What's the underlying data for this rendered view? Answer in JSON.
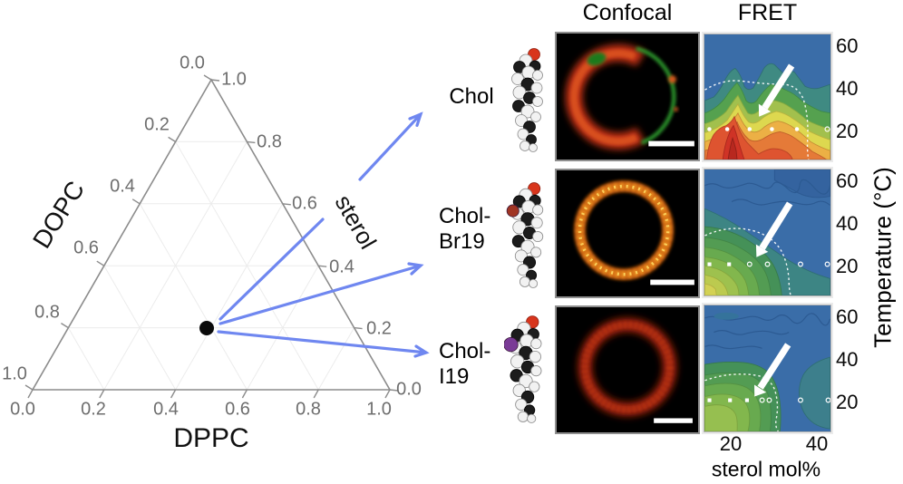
{
  "figure": {
    "columns": {
      "confocal_header": "Confocal",
      "fret_header": "FRET"
    },
    "rows": [
      {
        "sterol_name": "Chol",
        "label_lines": [
          "Chol",
          ""
        ],
        "substituent": "none",
        "substituent_color": ""
      },
      {
        "sterol_name": "Chol-Br19",
        "label_lines": [
          "Chol-",
          "Br19"
        ],
        "substituent": "bromine",
        "substituent_color": "#a03524"
      },
      {
        "sterol_name": "Chol-I19",
        "label_lines": [
          "Chol-",
          "I19"
        ],
        "substituent": "iodine",
        "substituent_color": "#7a3b96"
      }
    ]
  },
  "ternary": {
    "axes": {
      "left": "DOPC",
      "bottom": "DPPC",
      "right": "sterol"
    },
    "left_ticks": [
      "0.0",
      "0.2",
      "0.4",
      "0.6",
      "0.8",
      "1.0"
    ],
    "right_ticks": [
      "1.0",
      "0.8",
      "0.6",
      "0.4",
      "0.2",
      "0.0"
    ],
    "bottom_ticks": [
      "0.0",
      "0.2",
      "0.4",
      "0.6",
      "0.8",
      "1.0"
    ],
    "composition_point": {
      "DPPC": 0.47,
      "DOPC": 0.33,
      "sterol": 0.2
    }
  },
  "fret_axes": {
    "y_label": "Temperature (°C)",
    "y_ticks": [
      "60",
      "40",
      "20"
    ],
    "x_label": "sterol mol%",
    "x_ticks": [
      "20",
      "40"
    ]
  },
  "colors": {
    "arrow_blue": "#6f87f0",
    "ternary_axis_gray": "#8c8c8c",
    "fret_scale_low_to_high": [
      "#3a6da8",
      "#3d8584",
      "#459158",
      "#539c53",
      "#68aa4f",
      "#82b74d",
      "#a2c04d",
      "#ddd84f",
      "#ecb045",
      "#e57a38",
      "#de5430",
      "#cf3326"
    ],
    "confocal_red": "#c83214",
    "confocal_green": "#2f9e2f",
    "confocal_orange_ring": "#e08018"
  },
  "chart_data": [
    {
      "type": "scatter",
      "subtype": "ternary-phase-diagram",
      "axes": {
        "left": "DOPC",
        "bottom": "DPPC",
        "right": "sterol"
      },
      "tick_range": [
        0.0,
        1.0
      ],
      "tick_step": 0.2,
      "grid": true,
      "points": [
        {
          "DPPC": 0.47,
          "DOPC": 0.33,
          "sterol": 0.2
        }
      ],
      "annotation": "single black composition point; three blue arrows fan out to the Chol, Chol-Br19 and Chol-I19 rows"
    },
    {
      "type": "heatmap",
      "title": "Chol FRET map",
      "xlabel": "sterol mol%",
      "ylabel": "Temperature (°C)",
      "x_ticks": [
        20,
        40
      ],
      "y_ticks": [
        60,
        40,
        20
      ],
      "description": "strong FRET dome (yellow-orange-red) below ~35 °C with red core near 10-15 mol% and <20 °C; blue (low FRET) above 40 °C; white dashed miscibility boundary; white sample points along 20 °C; white arrow points near 22 mol%, 25 °C"
    },
    {
      "type": "heatmap",
      "title": "Chol-Br19 FRET map",
      "xlabel": "sterol mol%",
      "ylabel": "Temperature (°C)",
      "x_ticks": [
        20,
        40
      ],
      "y_ticks": [
        60,
        40,
        20
      ],
      "description": "moderate FRET green-yellow blob confined to lower-left corner (<~30 mol%, <~30 °C); remainder blue/teal; dashed boundary arc; sample points along 20 °C; arrow points near boundary at ~22 mol%"
    },
    {
      "type": "heatmap",
      "title": "Chol-I19 FRET map",
      "xlabel": "sterol mol%",
      "ylabel": "Temperature (°C)",
      "x_ticks": [
        20,
        40
      ],
      "y_ticks": [
        60,
        40,
        20
      ],
      "description": "weak-moderate green region at lower-left below ~30 °C extending to ~25 mol%; remainder blue with teal band at right; dashed boundary; sample points along 20 °C; arrow points near boundary at ~22 mol%"
    }
  ]
}
